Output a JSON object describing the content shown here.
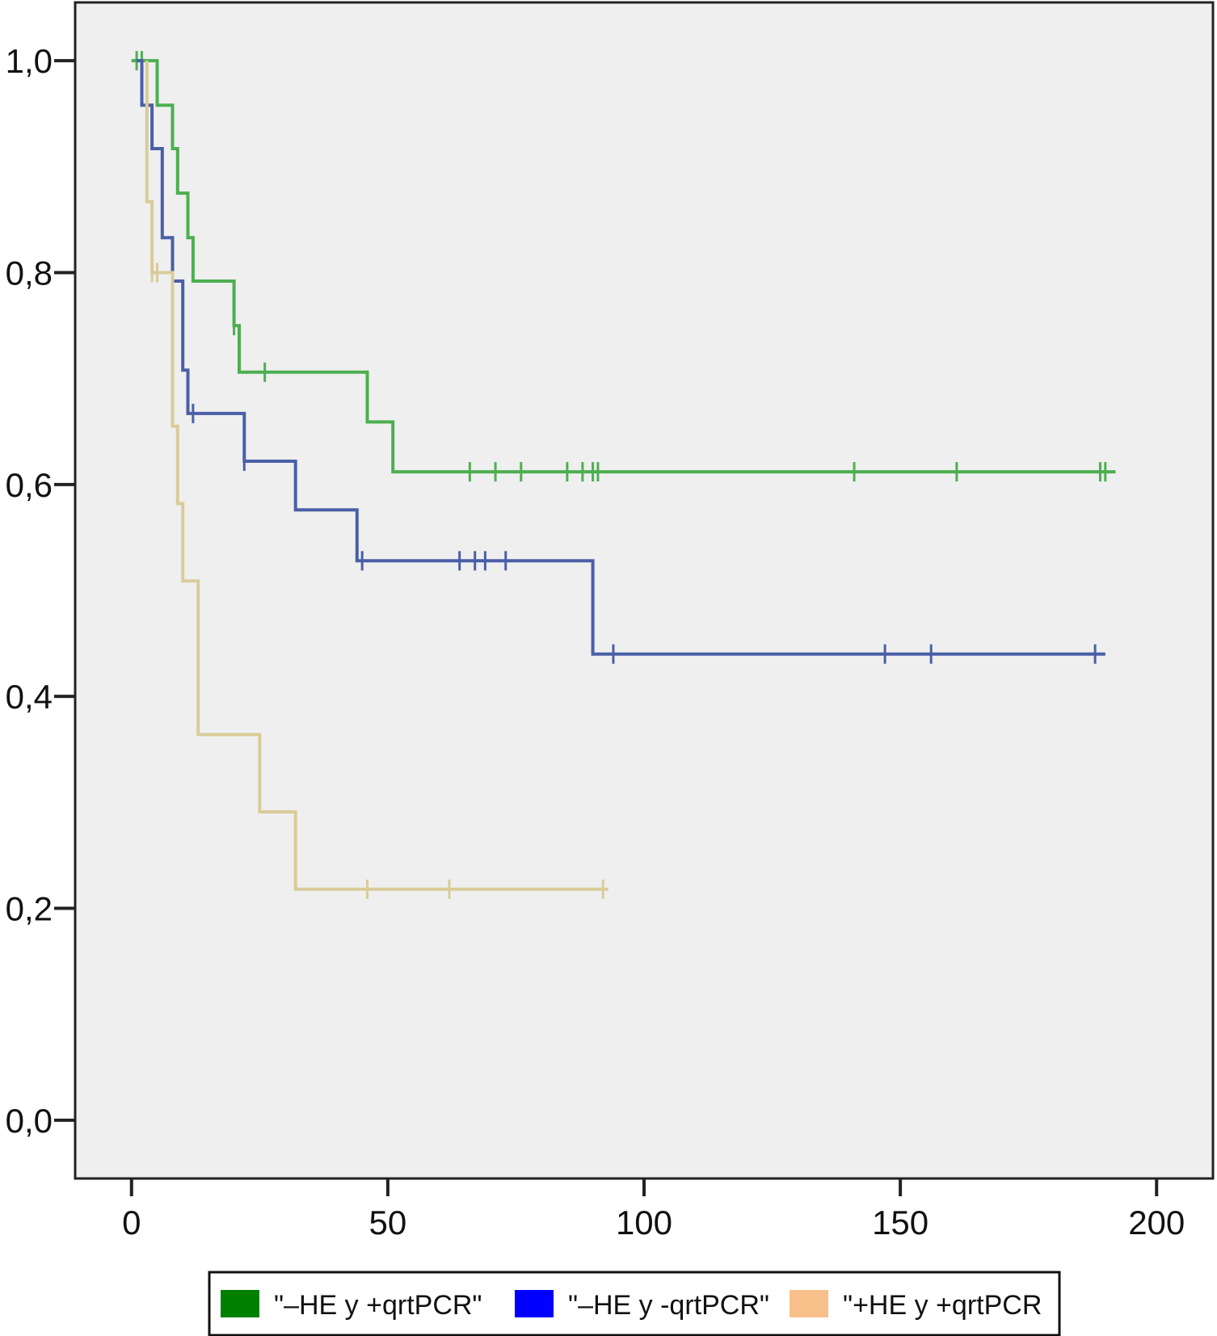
{
  "chart_data": {
    "type": "line",
    "step": true,
    "title": "",
    "xlabel": "",
    "ylabel": "",
    "xlim": [
      -11,
      211
    ],
    "ylim": [
      -0.055,
      1.055
    ],
    "x_ticks": [
      {
        "value": 0,
        "label": "0"
      },
      {
        "value": 50,
        "label": "50"
      },
      {
        "value": 100,
        "label": "100"
      },
      {
        "value": 150,
        "label": "150"
      },
      {
        "value": 200,
        "label": "200"
      }
    ],
    "y_ticks": [
      {
        "value": 0.0,
        "label": "0,0"
      },
      {
        "value": 0.2,
        "label": "0,2"
      },
      {
        "value": 0.4,
        "label": "0,4"
      },
      {
        "value": 0.6,
        "label": "0,6"
      },
      {
        "value": 0.8,
        "label": "0,8"
      },
      {
        "value": 1.0,
        "label": "1,0"
      }
    ],
    "grid": false,
    "legend_position": "bottom",
    "series": [
      {
        "name": "\"–HE y +qrtPCR\"",
        "color": "#4caf50",
        "legend_color": "#008000",
        "points": [
          [
            0,
            1.0
          ],
          [
            5,
            1.0
          ],
          [
            5,
            0.958
          ],
          [
            8,
            0.958
          ],
          [
            8,
            0.917
          ],
          [
            9,
            0.917
          ],
          [
            9,
            0.875
          ],
          [
            11,
            0.875
          ],
          [
            11,
            0.833
          ],
          [
            12,
            0.833
          ],
          [
            12,
            0.792
          ],
          [
            20,
            0.792
          ],
          [
            20,
            0.75
          ],
          [
            21,
            0.75
          ],
          [
            21,
            0.706
          ],
          [
            46,
            0.706
          ],
          [
            46,
            0.659
          ],
          [
            51,
            0.659
          ],
          [
            51,
            0.612
          ],
          [
            192,
            0.612
          ]
        ],
        "censored": [
          [
            1,
            1.0
          ],
          [
            2,
            1.0
          ],
          [
            20,
            0.75
          ],
          [
            26,
            0.706
          ],
          [
            66,
            0.612
          ],
          [
            71,
            0.612
          ],
          [
            76,
            0.612
          ],
          [
            85,
            0.612
          ],
          [
            88,
            0.612
          ],
          [
            90,
            0.612
          ],
          [
            91,
            0.612
          ],
          [
            141,
            0.612
          ],
          [
            161,
            0.612
          ],
          [
            189,
            0.612
          ],
          [
            190,
            0.612
          ]
        ]
      },
      {
        "name": "\"–HE y -qrtPCR\"",
        "color": "#4a5fa8",
        "legend_color": "#0000ff",
        "points": [
          [
            1,
            1.0
          ],
          [
            2,
            1.0
          ],
          [
            2,
            0.958
          ],
          [
            4,
            0.958
          ],
          [
            4,
            0.917
          ],
          [
            6,
            0.917
          ],
          [
            6,
            0.833
          ],
          [
            8,
            0.833
          ],
          [
            8,
            0.792
          ],
          [
            10,
            0.792
          ],
          [
            10,
            0.708
          ],
          [
            11,
            0.708
          ],
          [
            11,
            0.667
          ],
          [
            22,
            0.667
          ],
          [
            22,
            0.622
          ],
          [
            32,
            0.622
          ],
          [
            32,
            0.576
          ],
          [
            44,
            0.576
          ],
          [
            44,
            0.528
          ],
          [
            90,
            0.528
          ],
          [
            90,
            0.44
          ],
          [
            190,
            0.44
          ]
        ],
        "censored": [
          [
            12,
            0.667
          ],
          [
            22,
            0.622
          ],
          [
            45,
            0.528
          ],
          [
            64,
            0.528
          ],
          [
            67,
            0.528
          ],
          [
            69,
            0.528
          ],
          [
            73,
            0.528
          ],
          [
            94,
            0.44
          ],
          [
            147,
            0.44
          ],
          [
            156,
            0.44
          ],
          [
            188,
            0.44
          ]
        ]
      },
      {
        "name": "\"+HE y +qrtPCR",
        "color": "#d9cc99",
        "legend_color": "#f7c08a",
        "points": [
          [
            3,
            1.0
          ],
          [
            3,
            0.867
          ],
          [
            4,
            0.867
          ],
          [
            4,
            0.8
          ],
          [
            8,
            0.8
          ],
          [
            8,
            0.655
          ],
          [
            9,
            0.655
          ],
          [
            9,
            0.582
          ],
          [
            10,
            0.582
          ],
          [
            10,
            0.509
          ],
          [
            13,
            0.509
          ],
          [
            13,
            0.364
          ],
          [
            25,
            0.364
          ],
          [
            25,
            0.291
          ],
          [
            32,
            0.291
          ],
          [
            32,
            0.218
          ],
          [
            93,
            0.218
          ]
        ],
        "censored": [
          [
            4,
            0.8
          ],
          [
            5,
            0.8
          ],
          [
            46,
            0.218
          ],
          [
            62,
            0.218
          ],
          [
            92,
            0.218
          ]
        ]
      }
    ]
  }
}
